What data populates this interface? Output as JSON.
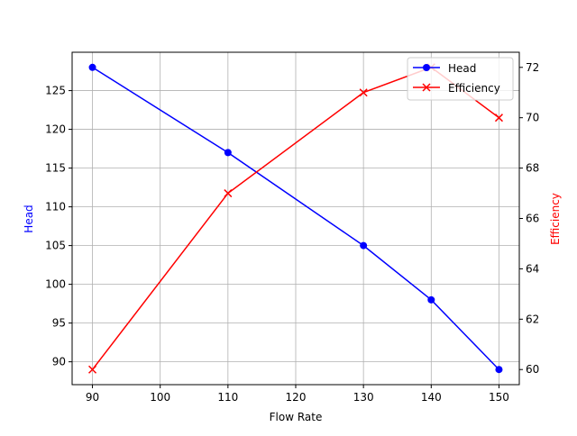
{
  "chart_data": {
    "type": "line",
    "title": "",
    "xlabel": "Flow Rate",
    "x": [
      90,
      110,
      130,
      140,
      150
    ],
    "xticks": [
      90,
      100,
      110,
      120,
      130,
      140,
      150
    ],
    "xlim": [
      87,
      153
    ],
    "left_axis": {
      "label": "Head",
      "color": "#0000ff",
      "ticks": [
        90,
        95,
        100,
        105,
        110,
        115,
        120,
        125
      ],
      "ylim": [
        87.05,
        129.95
      ]
    },
    "right_axis": {
      "label": "Efficiency",
      "color": "#ff0000",
      "ticks": [
        60,
        62,
        64,
        66,
        68,
        70,
        72
      ],
      "ylim": [
        59.4,
        72.6
      ]
    },
    "series": [
      {
        "name": "Head",
        "axis": "left",
        "color": "#0000ff",
        "marker": "circle",
        "values": [
          128,
          117,
          105,
          98,
          89
        ]
      },
      {
        "name": "Efficiency",
        "axis": "right",
        "color": "#ff0000",
        "marker": "x",
        "values": [
          60,
          67,
          71,
          72,
          70
        ]
      }
    ],
    "grid": true,
    "legend": {
      "position": "upper right",
      "entries": [
        "Head",
        "Efficiency"
      ]
    }
  }
}
